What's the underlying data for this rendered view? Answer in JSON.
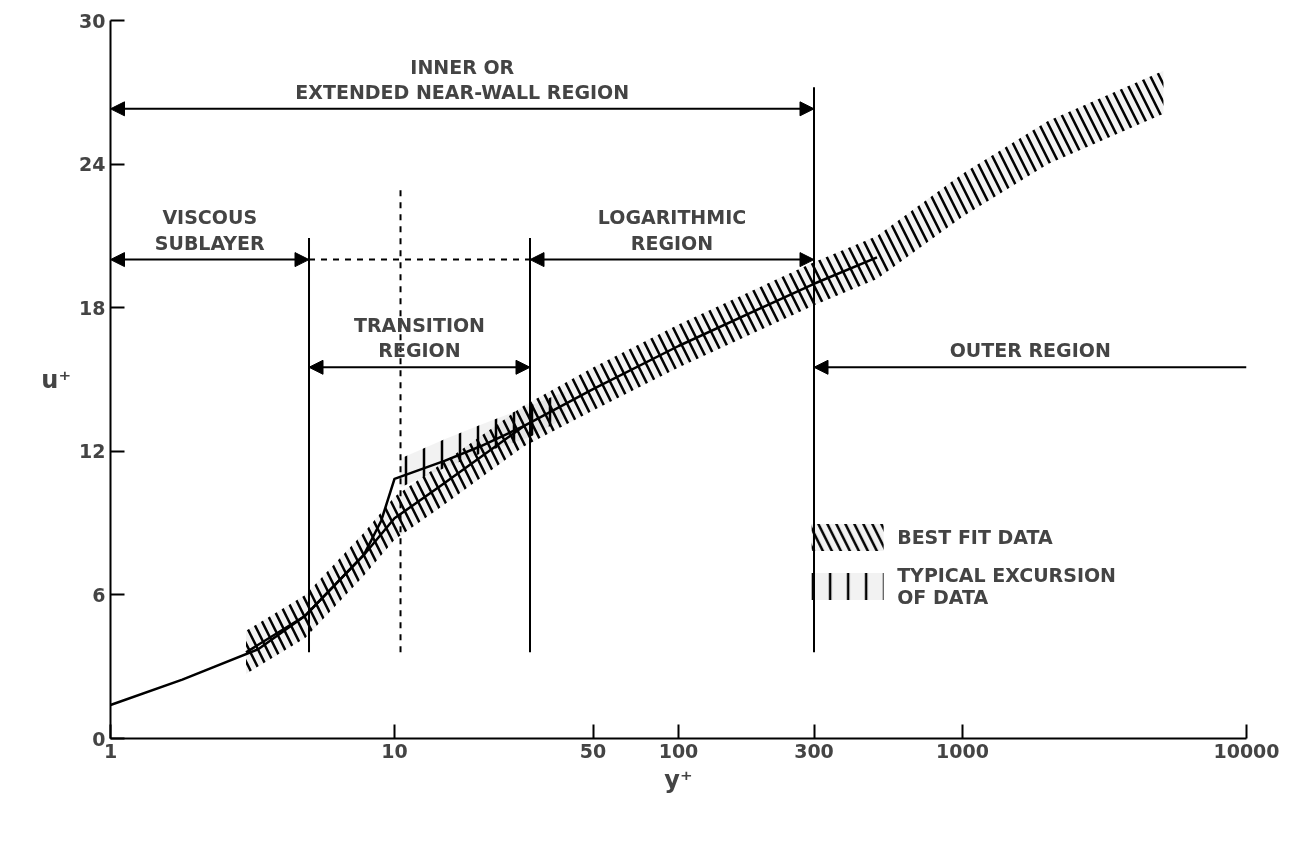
{
  "chart_data": {
    "type": "line",
    "xlabel": "y⁺",
    "ylabel": "u⁺",
    "log": "x",
    "xlim": [
      1,
      10000
    ],
    "xticks": [
      1,
      10,
      50,
      100,
      300,
      1000,
      10000
    ],
    "ylim": [
      0,
      30
    ],
    "yticks": [
      0,
      6,
      12,
      18,
      24,
      30
    ],
    "grid": false,
    "legend": "bottom right",
    "series": [
      {
        "color": "#000000",
        "x": [
          1,
          1.79,
          3.31,
          4.85,
          7.8,
          8.98,
          10,
          15,
          20,
          28.5
        ],
        "values": [
          1.4,
          2.46,
          3.73,
          5.13,
          7.67,
          9.1,
          10.85,
          11.6,
          12.2,
          13.05
        ]
      },
      {
        "type": "line",
        "name": "BEST FIT DATA",
        "color": "#000000",
        "x": [
          3,
          4.85,
          7.8,
          10,
          14.3,
          28.5,
          50,
          100,
          300,
          500,
          1000,
          2000,
          5100
        ],
        "values": [
          3.6,
          5.13,
          7.67,
          9.2,
          10.5,
          13.05,
          14.6,
          16.4,
          19.0,
          20.1,
          null,
          null,
          null
        ],
        "lower": [
          2.7,
          4.2,
          6.8,
          8.3,
          9.6,
          12.2,
          13.7,
          15.5,
          18.1,
          19.2,
          21.8,
          24.0,
          26.1
        ],
        "upper": [
          4.5,
          6.0,
          8.6,
          10.1,
          11.4,
          13.9,
          15.5,
          17.3,
          19.9,
          21.0,
          23.6,
          25.8,
          27.9
        ]
      },
      {
        "type": "line",
        "name": "TYPICAL EXCURSION\nOF DATA",
        "color": "#000000",
        "x": [
          10.5,
          15,
          20,
          30,
          40
        ],
        "values": [
          null,
          null,
          null,
          null,
          null
        ],
        "lower": [
          10.5,
          11.3,
          11.9,
          12.6,
          13.4
        ],
        "upper": [
          11.7,
          12.5,
          13.1,
          13.9,
          14.5
        ]
      }
    ],
    "annotations": [
      "INNER OR\nEXTENDED NEAR-WALL REGION",
      "VISCOUS\nSUBLAYER",
      "TRANSITION\nREGION",
      "LOGARITHMIC\nREGION",
      "OUTER REGION"
    ],
    "ref_lines": [
      {
        "axis": "x",
        "value": 5,
        "label": null
      },
      {
        "axis": "x",
        "value": 10.5,
        "label": null,
        "line_style": "dashed"
      },
      {
        "axis": "x",
        "value": 30,
        "label": null
      },
      {
        "axis": "x",
        "value": 300,
        "label": null
      }
    ]
  }
}
